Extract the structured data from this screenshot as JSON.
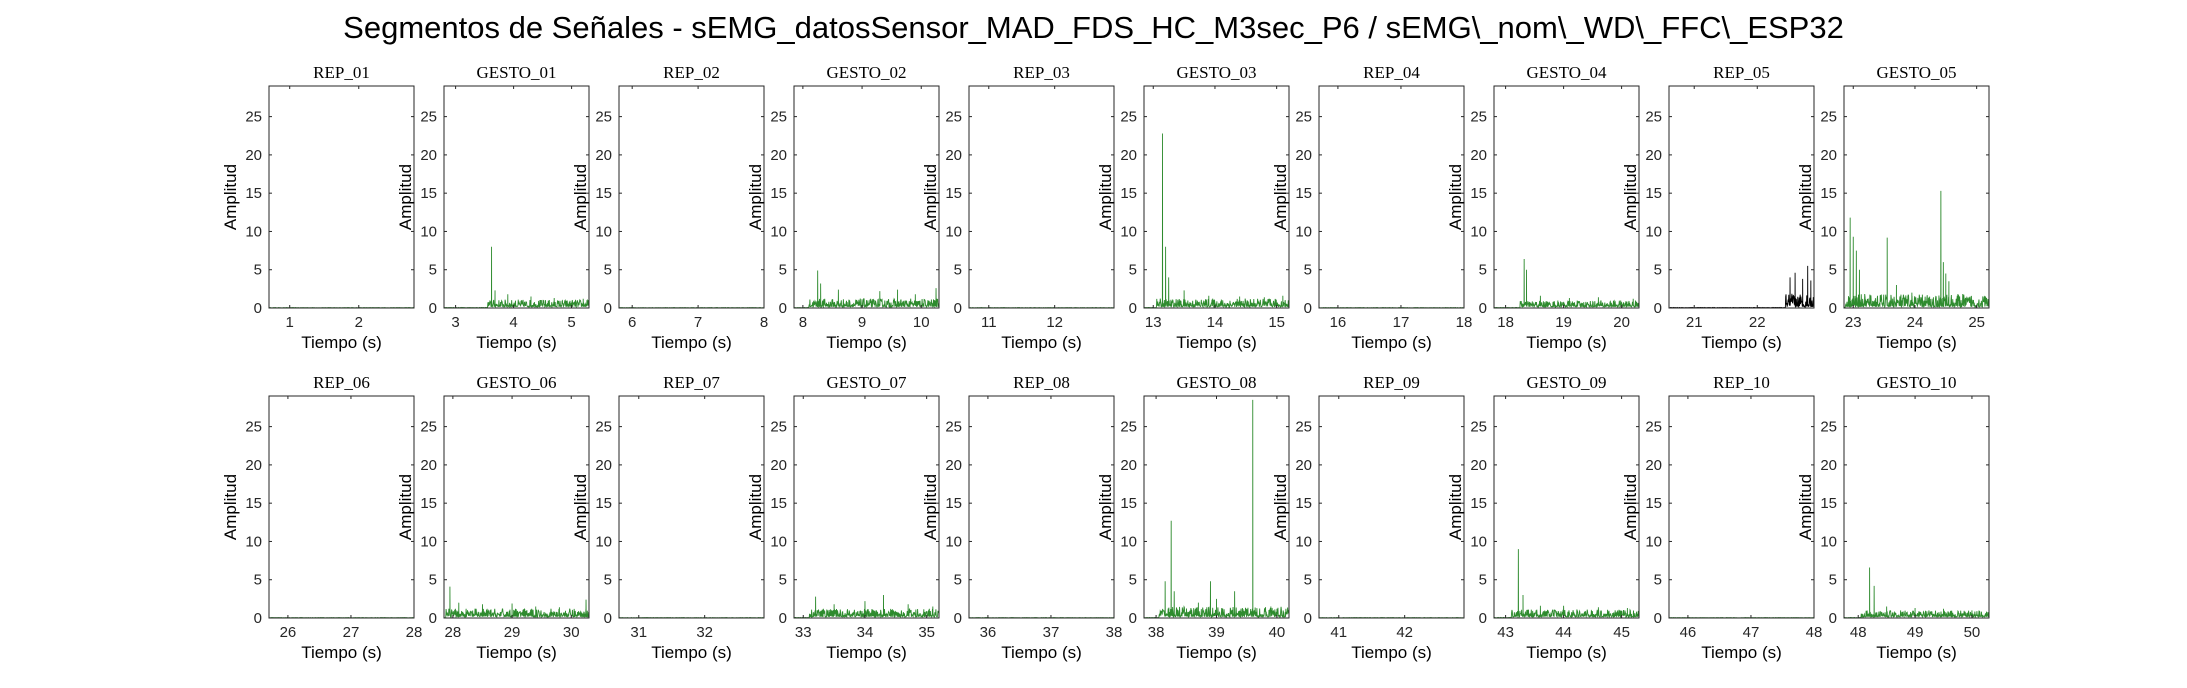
{
  "title": "Segmentos de Señales - sEMG_datosSensor_MAD_FDS_HC_M3sec_P6 / sEMG\\_nom\\_WD\\_FFC\\_ESP32",
  "colors": {
    "gesture": "#2e8b2e",
    "rep_signal": "#000000",
    "axes": "#262626"
  },
  "chart_data": [
    {
      "type": "line",
      "title": "REP_01",
      "xlabel": "Tiempo (s)",
      "ylabel": "Amplitud",
      "xlim": [
        0.7,
        2.8
      ],
      "ylim": [
        0,
        29
      ],
      "xticks": [
        1,
        2
      ],
      "yticks": [
        0,
        5,
        10,
        15,
        20,
        25
      ],
      "color": "gesture",
      "spikes": []
    },
    {
      "type": "line",
      "title": "GESTO_01",
      "xlabel": "Tiempo (s)",
      "ylabel": "Amplitud",
      "xlim": [
        2.8,
        5.3
      ],
      "ylim": [
        0,
        29
      ],
      "xticks": [
        3,
        4,
        5
      ],
      "yticks": [
        0,
        5,
        10,
        15,
        20,
        25
      ],
      "color": "gesture",
      "active_start": 3.55,
      "noise": 0.8,
      "spikes": [
        [
          3.62,
          8
        ],
        [
          3.68,
          2.3
        ],
        [
          3.9,
          1.8
        ],
        [
          4.3,
          1.5
        ],
        [
          4.7,
          1.3
        ],
        [
          5.2,
          1.2
        ]
      ]
    },
    {
      "type": "line",
      "title": "REP_02",
      "xlabel": "Tiempo (s)",
      "ylabel": "Amplitud",
      "xlim": [
        5.8,
        8
      ],
      "ylim": [
        0,
        29
      ],
      "xticks": [
        6,
        7,
        8
      ],
      "yticks": [
        0,
        5,
        10,
        15,
        20,
        25
      ],
      "color": "gesture",
      "spikes": []
    },
    {
      "type": "line",
      "title": "GESTO_02",
      "xlabel": "Tiempo (s)",
      "ylabel": "Amplitud",
      "xlim": [
        7.85,
        10.3
      ],
      "ylim": [
        0,
        29
      ],
      "xticks": [
        8,
        9,
        10
      ],
      "yticks": [
        0,
        5,
        10,
        15,
        20,
        25
      ],
      "color": "gesture",
      "active_start": 8.1,
      "noise": 0.9,
      "spikes": [
        [
          8.25,
          4.9
        ],
        [
          8.3,
          3.2
        ],
        [
          8.6,
          2.4
        ],
        [
          9.3,
          2.2
        ],
        [
          9.6,
          2.4
        ],
        [
          9.9,
          1.8
        ],
        [
          10.25,
          2.6
        ]
      ]
    },
    {
      "type": "line",
      "title": "REP_03",
      "xlabel": "Tiempo (s)",
      "ylabel": "Amplitud",
      "xlim": [
        10.7,
        12.9
      ],
      "ylim": [
        0,
        29
      ],
      "xticks": [
        11,
        12
      ],
      "yticks": [
        0,
        5,
        10,
        15,
        20,
        25
      ],
      "color": "gesture",
      "spikes": []
    },
    {
      "type": "line",
      "title": "GESTO_03",
      "xlabel": "Tiempo (s)",
      "ylabel": "Amplitud",
      "xlim": [
        12.85,
        15.2
      ],
      "ylim": [
        0,
        29
      ],
      "xticks": [
        13,
        14,
        15
      ],
      "yticks": [
        0,
        5,
        10,
        15,
        20,
        25
      ],
      "color": "gesture",
      "active_start": 13.05,
      "noise": 0.9,
      "spikes": [
        [
          13.15,
          22.8
        ],
        [
          13.2,
          8
        ],
        [
          13.25,
          4
        ],
        [
          13.5,
          2.3
        ],
        [
          13.9,
          1.6
        ],
        [
          14.4,
          1.5
        ],
        [
          14.8,
          1.4
        ],
        [
          15.1,
          1.6
        ]
      ]
    },
    {
      "type": "line",
      "title": "REP_04",
      "xlabel": "Tiempo (s)",
      "ylabel": "Amplitud",
      "xlim": [
        15.7,
        18
      ],
      "ylim": [
        0,
        29
      ],
      "xticks": [
        16,
        17,
        18
      ],
      "yticks": [
        0,
        5,
        10,
        15,
        20,
        25
      ],
      "color": "gesture",
      "spikes": []
    },
    {
      "type": "line",
      "title": "GESTO_04",
      "xlabel": "Tiempo (s)",
      "ylabel": "Amplitud",
      "xlim": [
        17.8,
        20.3
      ],
      "ylim": [
        0,
        29
      ],
      "xticks": [
        18,
        19,
        20
      ],
      "yticks": [
        0,
        5,
        10,
        15,
        20,
        25
      ],
      "color": "gesture",
      "active_start": 18.25,
      "noise": 0.7,
      "spikes": [
        [
          18.32,
          6.4
        ],
        [
          18.36,
          5
        ],
        [
          18.6,
          1.6
        ],
        [
          19.1,
          1.3
        ],
        [
          19.6,
          1.4
        ],
        [
          20.2,
          1.2
        ]
      ]
    },
    {
      "type": "line",
      "title": "REP_05",
      "xlabel": "Tiempo (s)",
      "ylabel": "Amplitud",
      "xlim": [
        20.6,
        22.9
      ],
      "ylim": [
        0,
        29
      ],
      "xticks": [
        21,
        22
      ],
      "yticks": [
        0,
        5,
        10,
        15,
        20,
        25
      ],
      "color": "rep_signal",
      "active_start": 22.45,
      "noise": 1.5,
      "spikes": [
        [
          22.52,
          4
        ],
        [
          22.6,
          4.6
        ],
        [
          22.72,
          3.8
        ],
        [
          22.8,
          5.5
        ],
        [
          22.85,
          3.6
        ]
      ]
    },
    {
      "type": "line",
      "title": "GESTO_05",
      "xlabel": "Tiempo (s)",
      "ylabel": "Amplitud",
      "xlim": [
        22.85,
        25.2
      ],
      "ylim": [
        0,
        29
      ],
      "xticks": [
        23,
        24,
        25
      ],
      "yticks": [
        0,
        5,
        10,
        15,
        20,
        25
      ],
      "color": "gesture",
      "active_start": 22.87,
      "noise": 1.4,
      "spikes": [
        [
          22.95,
          11.8
        ],
        [
          23.0,
          9.3
        ],
        [
          23.05,
          7.5
        ],
        [
          23.1,
          5
        ],
        [
          23.55,
          9.2
        ],
        [
          23.7,
          3
        ],
        [
          23.95,
          2
        ],
        [
          24.42,
          15.3
        ],
        [
          24.46,
          6
        ],
        [
          24.5,
          4.5
        ],
        [
          24.55,
          3.5
        ]
      ]
    },
    {
      "type": "line",
      "title": "REP_06",
      "xlabel": "Tiempo (s)",
      "ylabel": "Amplitud",
      "xlim": [
        25.7,
        28
      ],
      "ylim": [
        0,
        29
      ],
      "xticks": [
        26,
        27,
        28
      ],
      "yticks": [
        0,
        5,
        10,
        15,
        20,
        25
      ],
      "color": "gesture",
      "spikes": []
    },
    {
      "type": "line",
      "title": "GESTO_06",
      "xlabel": "Tiempo (s)",
      "ylabel": "Amplitud",
      "xlim": [
        27.85,
        30.3
      ],
      "ylim": [
        0,
        29
      ],
      "xticks": [
        28,
        29,
        30
      ],
      "yticks": [
        0,
        5,
        10,
        15,
        20,
        25
      ],
      "color": "gesture",
      "active_start": 27.88,
      "noise": 0.9,
      "spikes": [
        [
          27.95,
          4.1
        ],
        [
          28.1,
          2
        ],
        [
          28.5,
          1.8
        ],
        [
          29.0,
          1.9
        ],
        [
          29.4,
          1.5
        ],
        [
          29.8,
          1.4
        ],
        [
          30.25,
          2.4
        ]
      ]
    },
    {
      "type": "line",
      "title": "REP_07",
      "xlabel": "Tiempo (s)",
      "ylabel": "Amplitud",
      "xlim": [
        30.7,
        32.9
      ],
      "ylim": [
        0,
        29
      ],
      "xticks": [
        31,
        32
      ],
      "yticks": [
        0,
        5,
        10,
        15,
        20,
        25
      ],
      "color": "gesture",
      "spikes": []
    },
    {
      "type": "line",
      "title": "GESTO_07",
      "xlabel": "Tiempo (s)",
      "ylabel": "Amplitud",
      "xlim": [
        32.85,
        35.2
      ],
      "ylim": [
        0,
        29
      ],
      "xticks": [
        33,
        34,
        35
      ],
      "yticks": [
        0,
        5,
        10,
        15,
        20,
        25
      ],
      "color": "gesture",
      "active_start": 33.1,
      "noise": 0.9,
      "spikes": [
        [
          33.2,
          2.8
        ],
        [
          33.5,
          1.8
        ],
        [
          34.0,
          2.2
        ],
        [
          34.3,
          3
        ],
        [
          34.7,
          1.8
        ],
        [
          35.1,
          1.5
        ]
      ]
    },
    {
      "type": "line",
      "title": "REP_08",
      "xlabel": "Tiempo (s)",
      "ylabel": "Amplitud",
      "xlim": [
        35.7,
        38
      ],
      "ylim": [
        0,
        29
      ],
      "xticks": [
        36,
        37,
        38
      ],
      "yticks": [
        0,
        5,
        10,
        15,
        20,
        25
      ],
      "color": "gesture",
      "spikes": []
    },
    {
      "type": "line",
      "title": "GESTO_08",
      "xlabel": "Tiempo (s)",
      "ylabel": "Amplitud",
      "xlim": [
        37.8,
        40.2
      ],
      "ylim": [
        0,
        29
      ],
      "xticks": [
        38,
        39,
        40
      ],
      "yticks": [
        0,
        5,
        10,
        15,
        20,
        25
      ],
      "color": "gesture",
      "active_start": 38.05,
      "noise": 1.1,
      "spikes": [
        [
          38.15,
          4.8
        ],
        [
          38.25,
          12.7
        ],
        [
          38.3,
          3.5
        ],
        [
          38.7,
          2
        ],
        [
          38.9,
          4.8
        ],
        [
          39.0,
          2.5
        ],
        [
          39.3,
          3.5
        ],
        [
          39.6,
          28.5
        ],
        [
          39.9,
          1.5
        ],
        [
          40.0,
          1.2
        ]
      ]
    },
    {
      "type": "line",
      "title": "REP_09",
      "xlabel": "Tiempo (s)",
      "ylabel": "Amplitud",
      "xlim": [
        40.7,
        42.9
      ],
      "ylim": [
        0,
        29
      ],
      "xticks": [
        41,
        42
      ],
      "yticks": [
        0,
        5,
        10,
        15,
        20,
        25
      ],
      "color": "gesture",
      "spikes": []
    },
    {
      "type": "line",
      "title": "GESTO_09",
      "xlabel": "Tiempo (s)",
      "ylabel": "Amplitud",
      "xlim": [
        42.8,
        45.3
      ],
      "ylim": [
        0,
        29
      ],
      "xticks": [
        43,
        44,
        45
      ],
      "yticks": [
        0,
        5,
        10,
        15,
        20,
        25
      ],
      "color": "gesture",
      "active_start": 43.1,
      "noise": 0.8,
      "spikes": [
        [
          43.22,
          9
        ],
        [
          43.3,
          3
        ],
        [
          43.6,
          1.6
        ],
        [
          44.0,
          1.6
        ],
        [
          44.6,
          1.4
        ],
        [
          45.1,
          1.3
        ]
      ]
    },
    {
      "type": "line",
      "title": "REP_10",
      "xlabel": "Tiempo (s)",
      "ylabel": "Amplitud",
      "xlim": [
        45.7,
        48
      ],
      "ylim": [
        0,
        29
      ],
      "xticks": [
        46,
        47,
        48
      ],
      "yticks": [
        0,
        5,
        10,
        15,
        20,
        25
      ],
      "color": "gesture",
      "spikes": []
    },
    {
      "type": "line",
      "title": "GESTO_10",
      "xlabel": "Tiempo (s)",
      "ylabel": "Amplitud",
      "xlim": [
        47.75,
        50.3
      ],
      "ylim": [
        0,
        29
      ],
      "xticks": [
        48,
        49,
        50
      ],
      "yticks": [
        0,
        5,
        10,
        15,
        20,
        25
      ],
      "color": "gesture",
      "active_start": 48.05,
      "noise": 0.7,
      "spikes": [
        [
          48.2,
          6.6
        ],
        [
          48.28,
          4.2
        ],
        [
          48.5,
          1.5
        ],
        [
          49.0,
          1.3
        ],
        [
          49.5,
          1.2
        ],
        [
          50.0,
          1
        ]
      ]
    }
  ]
}
